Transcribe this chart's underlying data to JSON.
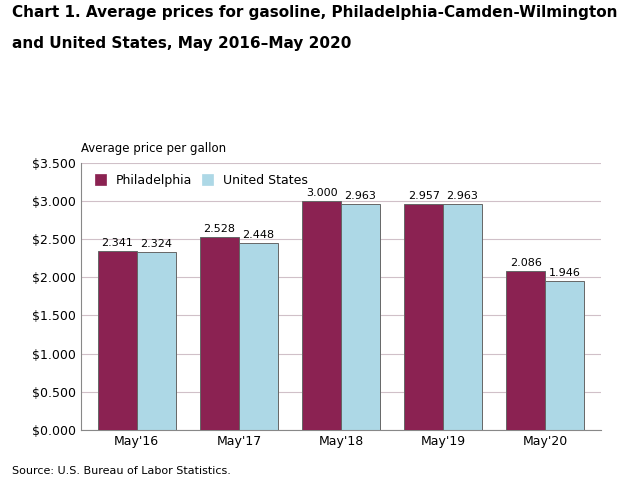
{
  "title_line1": "Chart 1. Average prices for gasoline, Philadelphia-Camden-Wilmington",
  "title_line2": "and United States, May 2016–May 2020",
  "ylabel": "Average price per gallon",
  "source": "Source: U.S. Bureau of Labor Statistics.",
  "categories": [
    "May'16",
    "May'17",
    "May'18",
    "May'19",
    "May'20"
  ],
  "philadelphia": [
    2.341,
    2.528,
    3.0,
    2.957,
    2.086
  ],
  "us": [
    2.324,
    2.448,
    2.963,
    2.963,
    1.946
  ],
  "philly_color": "#8B2252",
  "us_color": "#ADD8E6",
  "philly_label": "Philadelphia",
  "us_label": "United States",
  "ylim": [
    0,
    3.5
  ],
  "yticks": [
    0.0,
    0.5,
    1.0,
    1.5,
    2.0,
    2.5,
    3.0,
    3.5
  ],
  "ytick_labels": [
    "$0.000",
    "$0.500",
    "$1.000",
    "$1.500",
    "$2.000",
    "$2.500",
    "$3.000",
    "$3.500"
  ],
  "bar_width": 0.38,
  "title_fontsize": 11,
  "axis_label_fontsize": 8.5,
  "tick_fontsize": 9,
  "value_fontsize": 8,
  "legend_fontsize": 9,
  "source_fontsize": 8,
  "background_color": "#ffffff",
  "grid_color": "#d0c0c8"
}
